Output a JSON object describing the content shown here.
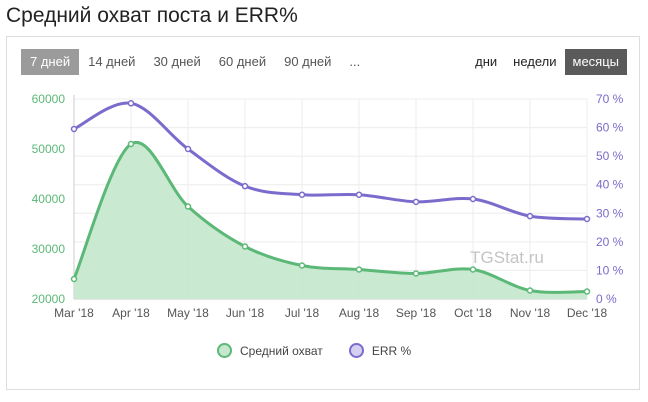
{
  "title": "Средний охват поста и ERR%",
  "periods": [
    "7 дней",
    "14 дней",
    "30 дней",
    "60 дней",
    "90 дней",
    "..."
  ],
  "active_period": 0,
  "units": [
    "дни",
    "недели",
    "месяцы"
  ],
  "active_unit": 2,
  "watermark": "TGStat.ru",
  "colors": {
    "reach_line": "#5cb877",
    "reach_fill": "#c6e8cf",
    "err_line": "#7b6bcc",
    "left_axis_text": "#5cb877",
    "right_axis_text": "#7b6bcc"
  },
  "chart_data": {
    "type": "area",
    "title": "Средний охват поста и ERR%",
    "categories": [
      "Mar '18",
      "Apr '18",
      "May '18",
      "Jun '18",
      "Jul '18",
      "Aug '18",
      "Sep '18",
      "Oct '18",
      "Nov '18",
      "Dec '18"
    ],
    "series": [
      {
        "name": "Средний охват",
        "axis": "left",
        "type": "area",
        "values": [
          24000,
          51000,
          38500,
          30500,
          26700,
          25900,
          25100,
          25900,
          21700,
          21500
        ]
      },
      {
        "name": "ERR %",
        "axis": "right",
        "type": "line",
        "values": [
          59.5,
          68.5,
          52.5,
          39.5,
          36.5,
          36.5,
          34.0,
          35.0,
          29.0,
          28.0
        ]
      }
    ],
    "y_left": {
      "min": 20000,
      "max": 60000,
      "ticks": [
        "20000",
        "30000",
        "40000",
        "50000",
        "60000"
      ]
    },
    "y_right": {
      "min": 0,
      "max": 70,
      "ticks": [
        "0 %",
        "10 %",
        "20 %",
        "30 %",
        "40 %",
        "50 %",
        "60 %",
        "70 %"
      ]
    },
    "grid": true,
    "legend_position": "bottom"
  }
}
